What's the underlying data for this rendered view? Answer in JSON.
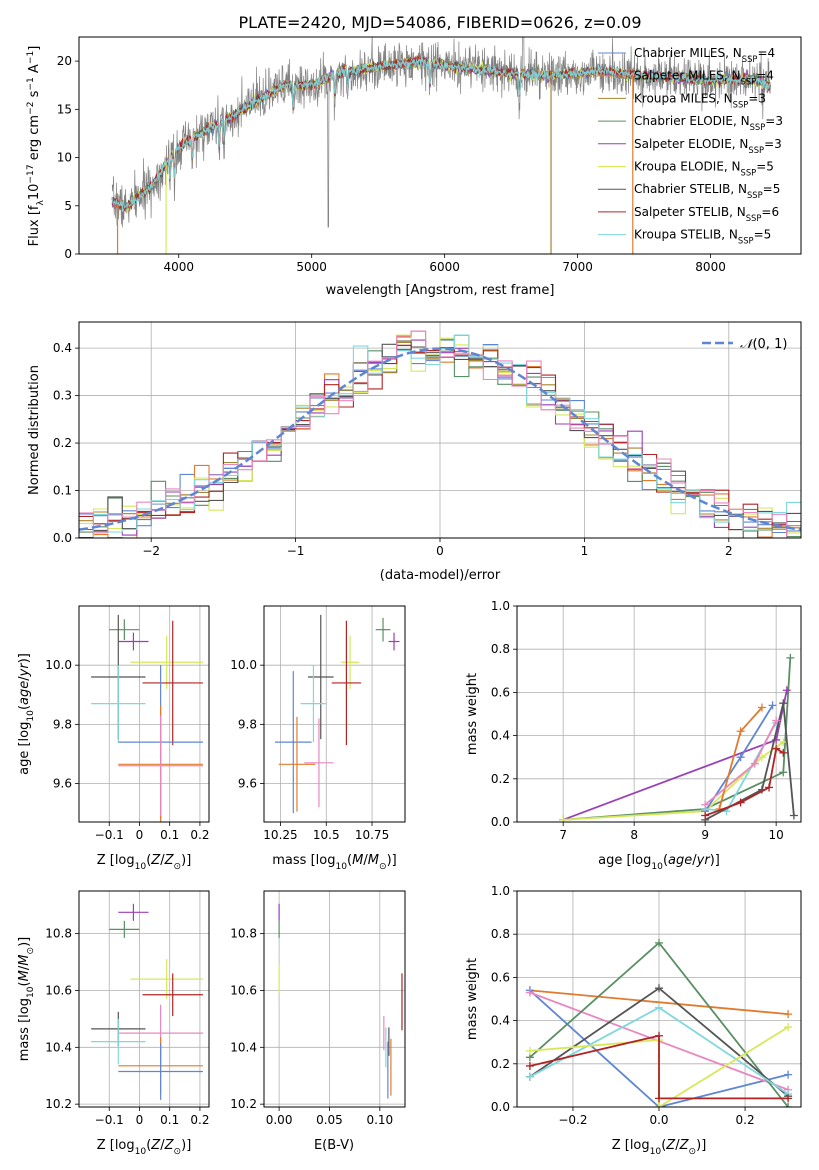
{
  "figure": {
    "title": "PLATE=2420, MJD=54086, FIBERID=0626, z=0.09"
  },
  "colors": {
    "Chabrier MILES": "#5f86d4",
    "Salpeter MILES": "#e07b2e",
    "Kroupa MILES": "#a8842e",
    "Chabrier ELODIE": "#5a8f63",
    "Salpeter ELODIE": "#9b3fb5",
    "Kroupa ELODIE": "#d6e85a",
    "Chabrier STELIB": "#555555",
    "Salpeter STELIB": "#b02424",
    "Kroupa STELIB": "#7fd8dc",
    "pink": "#e987c0",
    "data": "#808080",
    "normal": "#5f86d4"
  },
  "chart_data": [
    {
      "id": "spectrum",
      "type": "line",
      "xlabel": "wavelength [Angstrom, rest frame]",
      "ylabel": "Flux [f_λ10^-17 erg cm^-2 s^-1 A^-1]",
      "xlim": [
        3250,
        8680
      ],
      "ylim": [
        0,
        22.5
      ],
      "xticks": [
        4000,
        5000,
        6000,
        7000,
        8000
      ],
      "yticks": [
        0,
        5,
        10,
        15,
        20
      ],
      "grid": false,
      "legend_position": "upper right",
      "legend": [
        {
          "model": "Chabrier MILES",
          "nssp": "4"
        },
        {
          "model": "Salpeter MILES",
          "nssp": "4"
        },
        {
          "model": "Kroupa MILES",
          "nssp": "3"
        },
        {
          "model": "Chabrier ELODIE",
          "nssp": "3"
        },
        {
          "model": "Salpeter ELODIE",
          "nssp": "3"
        },
        {
          "model": "Kroupa ELODIE",
          "nssp": "5"
        },
        {
          "model": "Chabrier STELIB",
          "nssp": "5"
        },
        {
          "model": "Salpeter STELIB",
          "nssp": "6"
        },
        {
          "model": "Kroupa STELIB",
          "nssp": "5"
        }
      ],
      "continuum": [
        [
          3500,
          5.5
        ],
        [
          3600,
          4.8
        ],
        [
          3700,
          6.0
        ],
        [
          3800,
          7.0
        ],
        [
          3900,
          9.3
        ],
        [
          4000,
          11.0
        ],
        [
          4200,
          12.8
        ],
        [
          4400,
          14.2
        ],
        [
          4600,
          16.0
        ],
        [
          4800,
          17.5
        ],
        [
          5000,
          17.5
        ],
        [
          5200,
          18.8
        ],
        [
          5500,
          19.4
        ],
        [
          5800,
          20.0
        ],
        [
          6000,
          19.5
        ],
        [
          6200,
          19.2
        ],
        [
          6500,
          18.7
        ],
        [
          6800,
          18.5
        ],
        [
          7000,
          18.7
        ],
        [
          7200,
          19.0
        ],
        [
          7400,
          18.6
        ],
        [
          7800,
          18.2
        ],
        [
          8000,
          18.0
        ],
        [
          8300,
          18.2
        ],
        [
          8450,
          17.4
        ]
      ]
    },
    {
      "id": "residuals",
      "type": "histogram",
      "xlabel": "(data-model)/error",
      "ylabel": "Normed distribution",
      "xlim": [
        -2.5,
        2.5
      ],
      "ylim": [
        0,
        0.455
      ],
      "xticks": [
        -2,
        -1,
        0,
        1,
        2
      ],
      "yticks": [
        0.0,
        0.1,
        0.2,
        0.3,
        0.4
      ],
      "grid": true,
      "legend_position": "upper right",
      "legend_label": "N(0,1)",
      "bin_width": 0.1
    },
    {
      "id": "age-vs-Z",
      "type": "scatter",
      "xlabel": "Z [log10(Z/Z⊙)]",
      "ylabel": "age  [log10(age/yr)]",
      "xlim": [
        -0.2,
        0.23
      ],
      "ylim": [
        9.47,
        10.2
      ],
      "xticks": [
        -0.1,
        0.0,
        0.1,
        0.2
      ],
      "ytick_values": [
        9.6,
        9.8,
        10.0
      ],
      "grid": true,
      "points": [
        {
          "model": "Chabrier ELODIE",
          "x": -0.05,
          "xerr": 0.05,
          "y": 10.12,
          "yerr": 0.035
        },
        {
          "model": "Salpeter ELODIE",
          "x": -0.02,
          "xerr": 0.05,
          "y": 10.08,
          "yerr": 0.03
        },
        {
          "model": "Kroupa ELODIE",
          "x": 0.09,
          "xerr": 0.12,
          "y": 10.01,
          "yerr": 0.09
        },
        {
          "model": "Chabrier STELIB",
          "x": -0.07,
          "xerr": 0.09,
          "y": 9.96,
          "yerr": 0.21
        },
        {
          "model": "Salpeter STELIB",
          "x": 0.11,
          "xerr": 0.1,
          "y": 9.94,
          "yerr": 0.21
        },
        {
          "model": "Kroupa STELIB",
          "x": -0.07,
          "xerr": 0.09,
          "y": 9.87,
          "yerr": 0.13
        },
        {
          "model": "Chabrier MILES",
          "x": 0.07,
          "xerr": 0.14,
          "y": 9.74,
          "yerr": 0.26
        },
        {
          "model": "Salpeter MILES",
          "x": 0.07,
          "xerr": 0.14,
          "y": 9.665,
          "yerr": 0.2
        },
        {
          "model": "pink",
          "x": 0.07,
          "xerr": 0.14,
          "y": 9.66,
          "yerr": 0.17
        }
      ]
    },
    {
      "id": "age-vs-mass",
      "type": "scatter",
      "xlabel": "mass [log10(M/M⊙)]",
      "ylabel": "",
      "xlim": [
        10.16,
        10.93
      ],
      "ylim": [
        9.47,
        10.2
      ],
      "xticks": [
        10.25,
        10.5,
        10.75
      ],
      "ytick_values": [
        9.6,
        9.8,
        10.0
      ],
      "grid": true,
      "points": [
        {
          "model": "Chabrier ELODIE",
          "x": 10.81,
          "xerr": 0.04,
          "y": 10.12,
          "yerr": 0.04
        },
        {
          "model": "Salpeter ELODIE",
          "x": 10.87,
          "xerr": 0.03,
          "y": 10.08,
          "yerr": 0.03
        },
        {
          "model": "Kroupa ELODIE",
          "x": 10.63,
          "xerr": 0.05,
          "y": 10.01,
          "yerr": 0.09
        },
        {
          "model": "Chabrier STELIB",
          "x": 10.47,
          "xerr": 0.07,
          "y": 9.96,
          "yerr": 0.21
        },
        {
          "model": "Salpeter STELIB",
          "x": 10.61,
          "xerr": 0.08,
          "y": 9.94,
          "yerr": 0.21
        },
        {
          "model": "Kroupa STELIB",
          "x": 10.43,
          "xerr": 0.07,
          "y": 9.87,
          "yerr": 0.13
        },
        {
          "model": "Chabrier MILES",
          "x": 10.32,
          "xerr": 0.1,
          "y": 9.74,
          "yerr": 0.24
        },
        {
          "model": "Salpeter MILES",
          "x": 10.34,
          "xerr": 0.1,
          "y": 9.665,
          "yerr": 0.16
        },
        {
          "model": "pink",
          "x": 10.46,
          "xerr": 0.08,
          "y": 9.67,
          "yerr": 0.15
        }
      ]
    },
    {
      "id": "weight-vs-age",
      "type": "line",
      "xlabel": "age  [log10(age/yr)]",
      "ylabel": "mass weight",
      "xlim": [
        6.35,
        10.35
      ],
      "ylim": [
        0,
        1
      ],
      "xticks": [
        7,
        8,
        9,
        10
      ],
      "ytick_values": [
        0.0,
        0.2,
        0.4,
        0.6,
        0.8,
        1.0
      ],
      "grid": true,
      "series": [
        {
          "model": "Chabrier ELODIE",
          "x": [
            7.0,
            9.0,
            10.1,
            10.2
          ],
          "y": [
            0.01,
            0.06,
            0.23,
            0.76
          ]
        },
        {
          "model": "Salpeter ELODIE",
          "x": [
            7.0,
            10.0,
            10.15
          ],
          "y": [
            0.01,
            0.38,
            0.61
          ]
        },
        {
          "model": "Kroupa ELODIE",
          "x": [
            7.0,
            9.0,
            9.8,
            10.1
          ],
          "y": [
            0.01,
            0.05,
            0.3,
            0.37
          ]
        },
        {
          "model": "Chabrier MILES",
          "x": [
            9.0,
            9.5,
            9.95
          ],
          "y": [
            0.05,
            0.3,
            0.54
          ]
        },
        {
          "model": "Salpeter MILES",
          "x": [
            9.2,
            9.5,
            9.8
          ],
          "y": [
            0.06,
            0.42,
            0.53
          ]
        },
        {
          "model": "Kroupa STELIB",
          "x": [
            9.0,
            9.3,
            10.0
          ],
          "y": [
            0.06,
            0.05,
            0.46
          ]
        },
        {
          "model": "Chabrier STELIB",
          "x": [
            9.0,
            9.8,
            10.1,
            10.25
          ],
          "y": [
            0.01,
            0.15,
            0.55,
            0.03
          ]
        },
        {
          "model": "Salpeter STELIB",
          "x": [
            9.0,
            9.5,
            9.9,
            10.0,
            10.1
          ],
          "y": [
            0.03,
            0.09,
            0.16,
            0.34,
            0.32
          ]
        },
        {
          "model": "pink",
          "x": [
            9.0,
            9.7,
            10.0
          ],
          "y": [
            0.08,
            0.27,
            0.47
          ]
        }
      ]
    },
    {
      "id": "mass-vs-Z",
      "type": "scatter",
      "xlabel": "Z [log10(Z/Z⊙)]",
      "ylabel": "mass [log10(M/M⊙)]",
      "xlim": [
        -0.2,
        0.23
      ],
      "ylim": [
        10.19,
        10.95
      ],
      "xticks": [
        -0.1,
        0.0,
        0.1,
        0.2
      ],
      "ytick_values": [
        10.2,
        10.4,
        10.6,
        10.8
      ],
      "grid": true,
      "points": [
        {
          "model": "Salpeter ELODIE",
          "x": -0.02,
          "xerr": 0.05,
          "y": 10.875,
          "yerr": 0.03
        },
        {
          "model": "Chabrier ELODIE",
          "x": -0.05,
          "xerr": 0.05,
          "y": 10.815,
          "yerr": 0.03
        },
        {
          "model": "Kroupa ELODIE",
          "x": 0.09,
          "xerr": 0.12,
          "y": 10.64,
          "yerr": 0.07
        },
        {
          "model": "Salpeter STELIB",
          "x": 0.11,
          "xerr": 0.1,
          "y": 10.585,
          "yerr": 0.075
        },
        {
          "model": "Chabrier STELIB",
          "x": -0.07,
          "xerr": 0.09,
          "y": 10.465,
          "yerr": 0.06
        },
        {
          "model": "pink",
          "x": 0.07,
          "xerr": 0.14,
          "y": 10.45,
          "yerr": 0.1
        },
        {
          "model": "Kroupa STELIB",
          "x": -0.07,
          "xerr": 0.09,
          "y": 10.42,
          "yerr": 0.08
        },
        {
          "model": "Salpeter MILES",
          "x": 0.07,
          "xerr": 0.14,
          "y": 10.335,
          "yerr": 0.1
        },
        {
          "model": "Chabrier MILES",
          "x": 0.07,
          "xerr": 0.14,
          "y": 10.315,
          "yerr": 0.1
        }
      ]
    },
    {
      "id": "mass-vs-ebv",
      "type": "scatter",
      "xlabel": "E(B-V)",
      "ylabel": "",
      "xlim": [
        -0.015,
        0.125
      ],
      "ylim": [
        10.19,
        10.95
      ],
      "xticks": [
        0.0,
        0.05,
        0.1
      ],
      "ytick_values": [
        10.2,
        10.4,
        10.6,
        10.8
      ],
      "grid": true,
      "points": [
        {
          "model": "Salpeter ELODIE",
          "x": 0.0,
          "y": 10.875,
          "yerr": 0.03
        },
        {
          "model": "Chabrier ELODIE",
          "x": 0.0,
          "y": 10.815,
          "yerr": 0.03
        },
        {
          "model": "Kroupa ELODIE",
          "x": 0.0,
          "y": 10.64,
          "yerr": 0.05
        },
        {
          "model": "Salpeter STELIB",
          "x": 0.122,
          "y": 10.56,
          "yerr": 0.1
        },
        {
          "model": "pink",
          "x": 0.104,
          "y": 10.45,
          "yerr": 0.06
        },
        {
          "model": "Kroupa STELIB",
          "x": 0.106,
          "y": 10.4,
          "yerr": 0.07
        },
        {
          "model": "Chabrier STELIB",
          "x": 0.109,
          "y": 10.42,
          "yerr": 0.05
        },
        {
          "model": "Salpeter MILES",
          "x": 0.111,
          "y": 10.33,
          "yerr": 0.1
        },
        {
          "model": "Chabrier MILES",
          "x": 0.108,
          "y": 10.32,
          "yerr": 0.1
        }
      ]
    },
    {
      "id": "weight-vs-Z",
      "type": "line",
      "xlabel": "Z [log10(Z/Z⊙)]",
      "ylabel": "mass weight",
      "xlim": [
        -0.33,
        0.33
      ],
      "ylim": [
        0,
        1
      ],
      "xticks": [
        -0.2,
        0.0,
        0.2
      ],
      "ytick_values": [
        0.0,
        0.2,
        0.4,
        0.6,
        0.8,
        1.0
      ],
      "grid": true,
      "series": [
        {
          "model": "Salpeter MILES",
          "x": [
            -0.3,
            0.3
          ],
          "y": [
            0.54,
            0.43
          ]
        },
        {
          "model": "Chabrier MILES",
          "x": [
            -0.3,
            0.0,
            0.3
          ],
          "y": [
            0.54,
            0.0,
            0.15
          ]
        },
        {
          "model": "pink",
          "x": [
            -0.3,
            0.3
          ],
          "y": [
            0.53,
            0.08
          ]
        },
        {
          "model": "Chabrier ELODIE",
          "x": [
            -0.3,
            0.0,
            0.3
          ],
          "y": [
            0.23,
            0.76,
            0.0
          ]
        },
        {
          "model": "Chabrier STELIB",
          "x": [
            -0.3,
            0.0,
            0.3
          ],
          "y": [
            0.14,
            0.55,
            0.05
          ]
        },
        {
          "model": "Kroupa STELIB",
          "x": [
            -0.3,
            0.0,
            0.3
          ],
          "y": [
            0.14,
            0.46,
            0.06
          ]
        },
        {
          "model": "Kroupa ELODIE",
          "x": [
            -0.3,
            0.0,
            0.0,
            0.3
          ],
          "y": [
            0.26,
            0.31,
            0.0,
            0.37
          ]
        },
        {
          "model": "Salpeter STELIB",
          "x": [
            -0.3,
            0.0,
            0.0,
            0.3
          ],
          "y": [
            0.19,
            0.33,
            0.04,
            0.04
          ]
        }
      ]
    }
  ]
}
